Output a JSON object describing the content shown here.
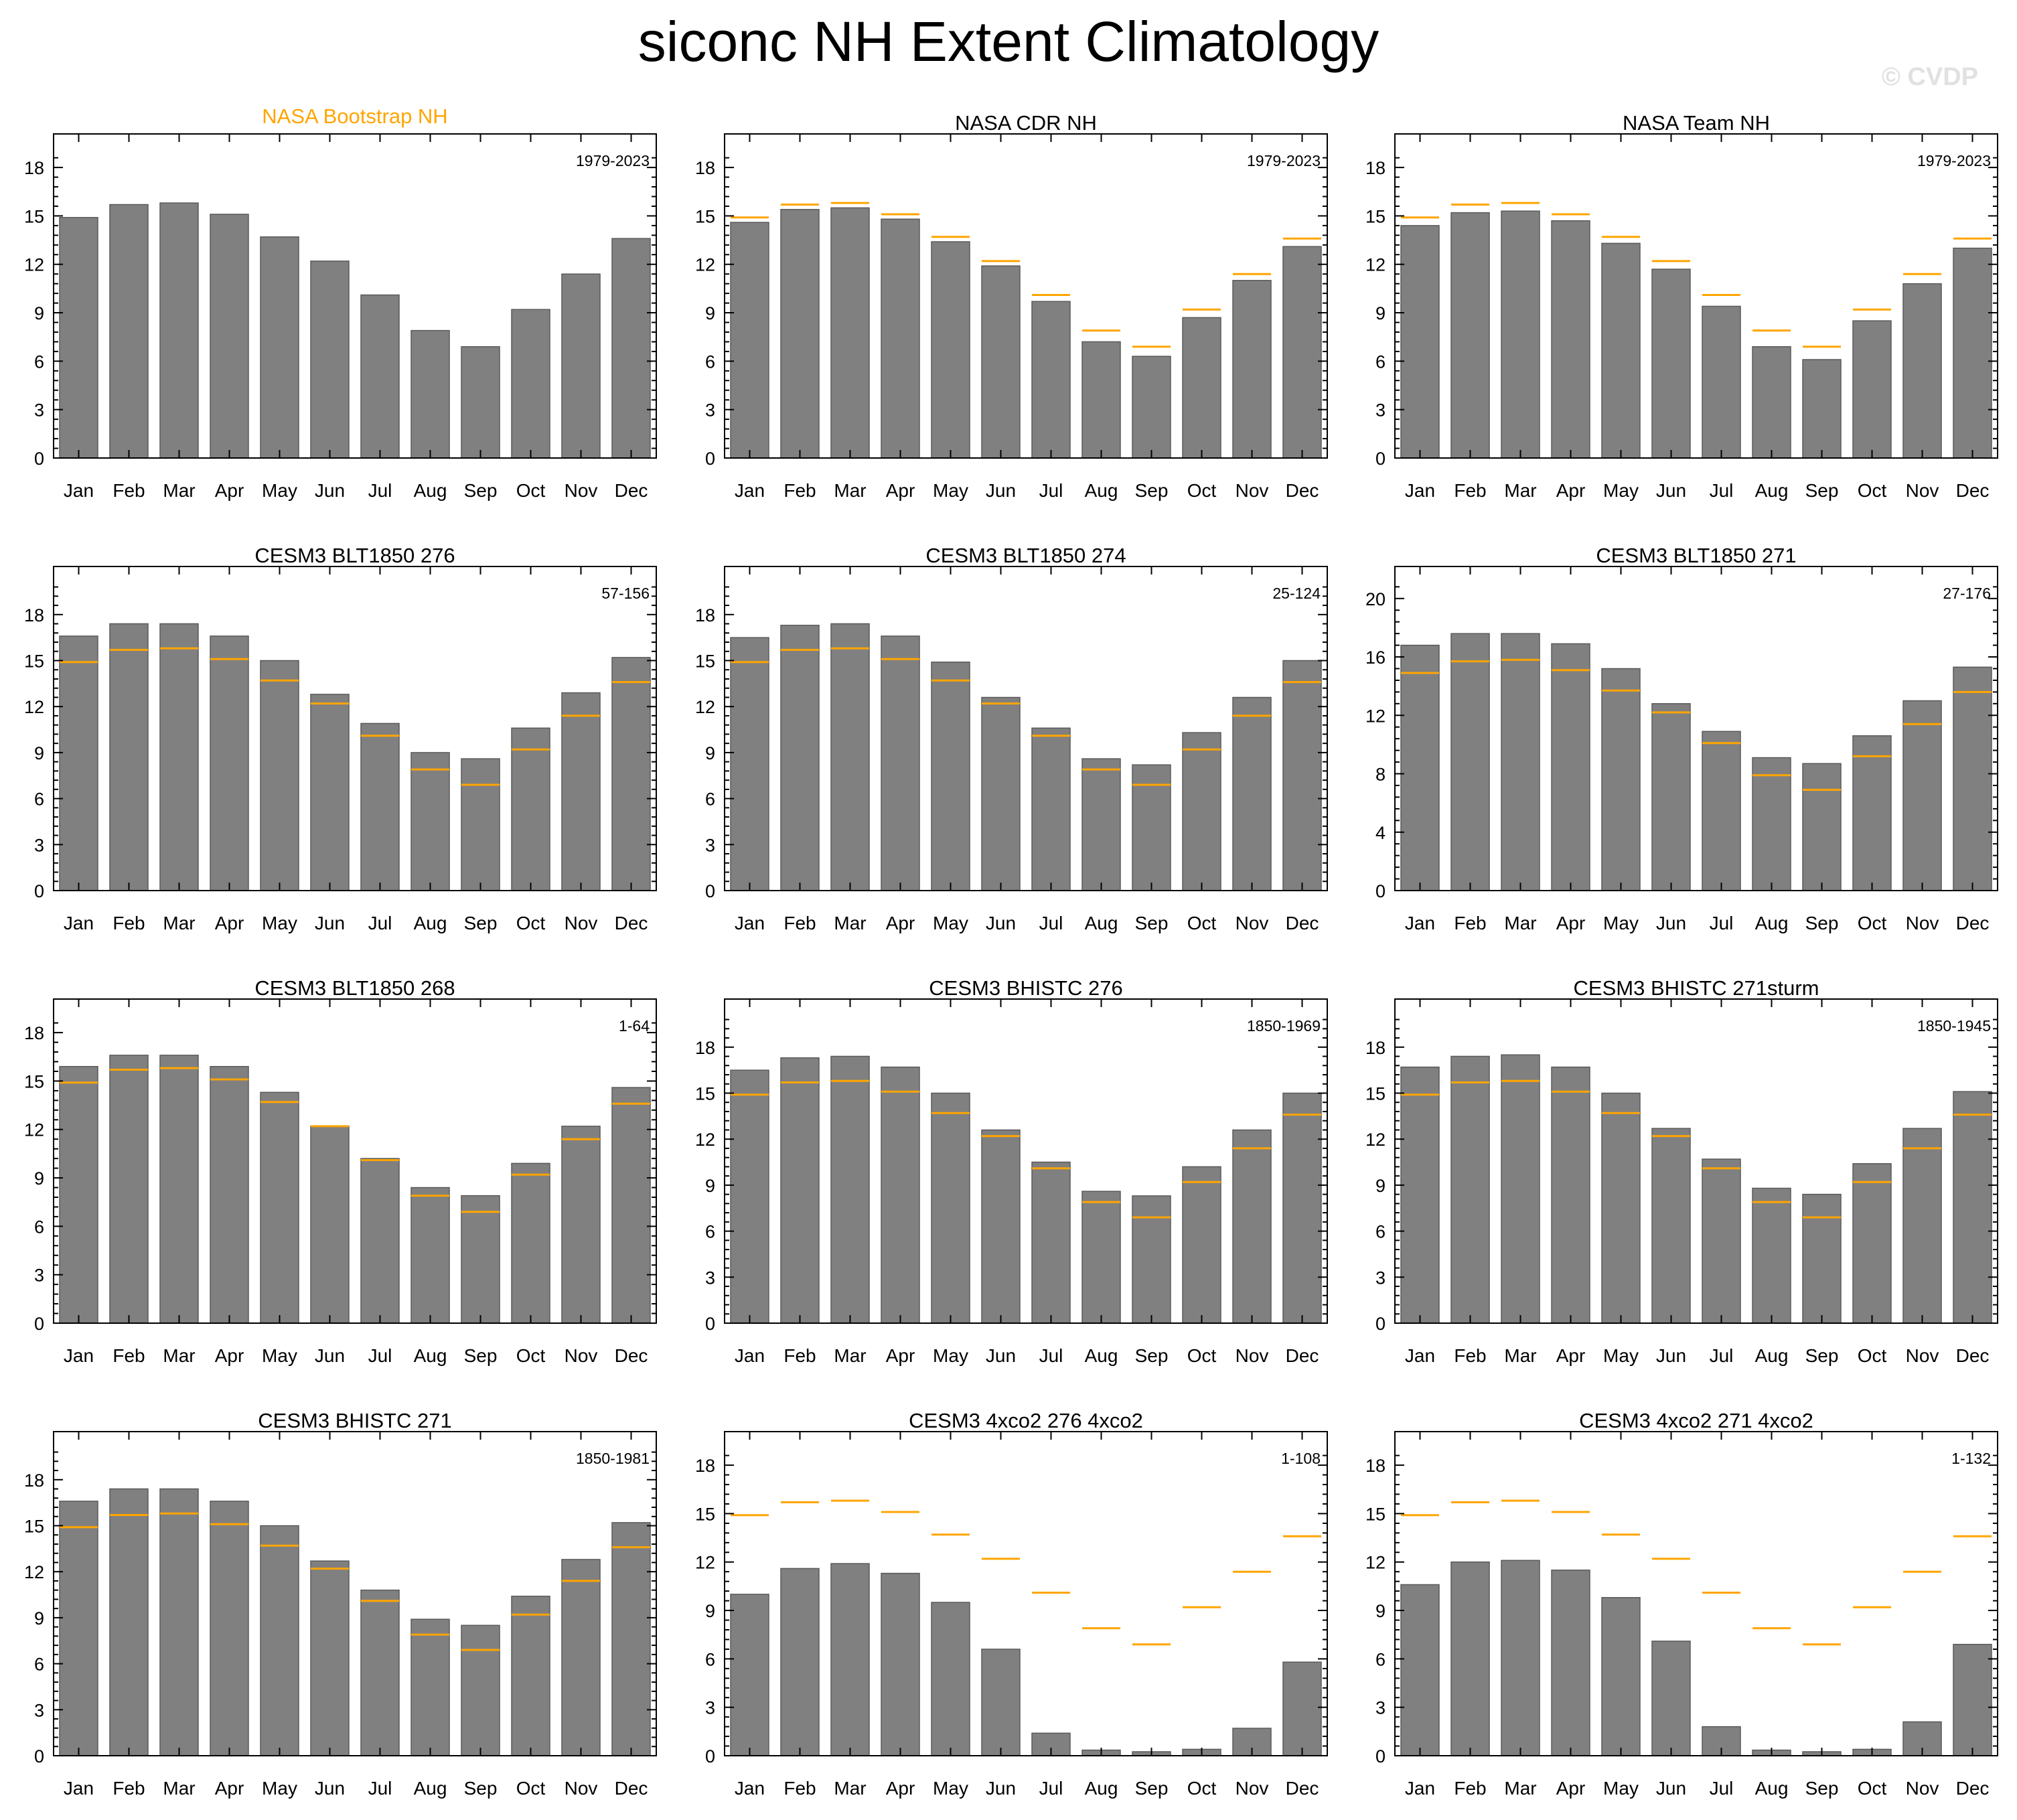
{
  "figure": {
    "title": "siconc NH Extent Climatology",
    "watermark": "© CVDP"
  },
  "colors": {
    "bar": "#808080",
    "reference_line": "#ffa500",
    "observation_title": "#ffa500",
    "axis": "#000000"
  },
  "months": [
    "Jan",
    "Feb",
    "Mar",
    "Apr",
    "May",
    "Jun",
    "Jul",
    "Aug",
    "Sep",
    "Oct",
    "Nov",
    "Dec"
  ],
  "reference": {
    "name": "NASA Bootstrap NH",
    "values": [
      14.9,
      15.7,
      15.8,
      15.1,
      13.7,
      12.2,
      10.1,
      7.9,
      6.9,
      9.2,
      11.4,
      13.6
    ]
  },
  "chart_data": [
    {
      "type": "bar",
      "title": "NASA Bootstrap NH",
      "period": "1979-2023",
      "title_is_reference": true,
      "show_reference": false,
      "ylim": [
        0,
        19
      ],
      "yticks": [
        0,
        3,
        6,
        9,
        12,
        15,
        18
      ],
      "categories": [
        "Jan",
        "Feb",
        "Mar",
        "Apr",
        "May",
        "Jun",
        "Jul",
        "Aug",
        "Sep",
        "Oct",
        "Nov",
        "Dec"
      ],
      "values": [
        14.9,
        15.7,
        15.8,
        15.1,
        13.7,
        12.2,
        10.1,
        7.9,
        6.9,
        9.2,
        11.4,
        13.6
      ]
    },
    {
      "type": "bar",
      "title": "NASA CDR NH",
      "period": "1979-2023",
      "show_reference": true,
      "ylim": [
        0,
        19
      ],
      "yticks": [
        0,
        3,
        6,
        9,
        12,
        15,
        18
      ],
      "categories": [
        "Jan",
        "Feb",
        "Mar",
        "Apr",
        "May",
        "Jun",
        "Jul",
        "Aug",
        "Sep",
        "Oct",
        "Nov",
        "Dec"
      ],
      "values": [
        14.6,
        15.4,
        15.5,
        14.8,
        13.4,
        11.9,
        9.7,
        7.2,
        6.3,
        8.7,
        11.0,
        13.1
      ]
    },
    {
      "type": "bar",
      "title": "NASA Team NH",
      "period": "1979-2023",
      "show_reference": true,
      "ylim": [
        0,
        19
      ],
      "yticks": [
        0,
        3,
        6,
        9,
        12,
        15,
        18
      ],
      "categories": [
        "Jan",
        "Feb",
        "Mar",
        "Apr",
        "May",
        "Jun",
        "Jul",
        "Aug",
        "Sep",
        "Oct",
        "Nov",
        "Dec"
      ],
      "values": [
        14.4,
        15.2,
        15.3,
        14.7,
        13.3,
        11.7,
        9.4,
        6.9,
        6.1,
        8.5,
        10.8,
        13.0
      ]
    },
    {
      "type": "bar",
      "title": "CESM3 BLT1850 276",
      "period": "57-156",
      "show_reference": true,
      "ylim": [
        0,
        20
      ],
      "yticks": [
        0,
        3,
        6,
        9,
        12,
        15,
        18
      ],
      "categories": [
        "Jan",
        "Feb",
        "Mar",
        "Apr",
        "May",
        "Jun",
        "Jul",
        "Aug",
        "Sep",
        "Oct",
        "Nov",
        "Dec"
      ],
      "values": [
        16.6,
        17.4,
        17.4,
        16.6,
        15.0,
        12.8,
        10.9,
        9.0,
        8.6,
        10.6,
        12.9,
        15.2
      ]
    },
    {
      "type": "bar",
      "title": "CESM3 BLT1850 274",
      "period": "25-124",
      "show_reference": true,
      "ylim": [
        0,
        20
      ],
      "yticks": [
        0,
        3,
        6,
        9,
        12,
        15,
        18
      ],
      "categories": [
        "Jan",
        "Feb",
        "Mar",
        "Apr",
        "May",
        "Jun",
        "Jul",
        "Aug",
        "Sep",
        "Oct",
        "Nov",
        "Dec"
      ],
      "values": [
        16.5,
        17.3,
        17.4,
        16.6,
        14.9,
        12.6,
        10.6,
        8.6,
        8.2,
        10.3,
        12.6,
        15.0
      ]
    },
    {
      "type": "bar",
      "title": "CESM3 BLT1850 271",
      "period": "27-176",
      "show_reference": true,
      "ylim": [
        0,
        21
      ],
      "yticks": [
        0,
        4,
        8,
        12,
        16,
        20
      ],
      "categories": [
        "Jan",
        "Feb",
        "Mar",
        "Apr",
        "May",
        "Jun",
        "Jul",
        "Aug",
        "Sep",
        "Oct",
        "Nov",
        "Dec"
      ],
      "values": [
        16.8,
        17.6,
        17.6,
        16.9,
        15.2,
        12.8,
        10.9,
        9.1,
        8.7,
        10.6,
        13.0,
        15.3
      ]
    },
    {
      "type": "bar",
      "title": "CESM3 BLT1850 268",
      "period": "1-64",
      "show_reference": true,
      "ylim": [
        0,
        19
      ],
      "yticks": [
        0,
        3,
        6,
        9,
        12,
        15,
        18
      ],
      "categories": [
        "Jan",
        "Feb",
        "Mar",
        "Apr",
        "May",
        "Jun",
        "Jul",
        "Aug",
        "Sep",
        "Oct",
        "Nov",
        "Dec"
      ],
      "values": [
        15.9,
        16.6,
        16.6,
        15.9,
        14.3,
        12.2,
        10.2,
        8.4,
        7.9,
        9.9,
        12.2,
        14.6
      ]
    },
    {
      "type": "bar",
      "title": "CESM3 BHISTC 276",
      "period": "1850-1969",
      "show_reference": true,
      "ylim": [
        0,
        20
      ],
      "yticks": [
        0,
        3,
        6,
        9,
        12,
        15,
        18
      ],
      "categories": [
        "Jan",
        "Feb",
        "Mar",
        "Apr",
        "May",
        "Jun",
        "Jul",
        "Aug",
        "Sep",
        "Oct",
        "Nov",
        "Dec"
      ],
      "values": [
        16.5,
        17.3,
        17.4,
        16.7,
        15.0,
        12.6,
        10.5,
        8.6,
        8.3,
        10.2,
        12.6,
        15.0
      ]
    },
    {
      "type": "bar",
      "title": "CESM3 BHISTC 271sturm",
      "period": "1850-1945",
      "show_reference": true,
      "ylim": [
        0,
        20
      ],
      "yticks": [
        0,
        3,
        6,
        9,
        12,
        15,
        18
      ],
      "categories": [
        "Jan",
        "Feb",
        "Mar",
        "Apr",
        "May",
        "Jun",
        "Jul",
        "Aug",
        "Sep",
        "Oct",
        "Nov",
        "Dec"
      ],
      "values": [
        16.7,
        17.4,
        17.5,
        16.7,
        15.0,
        12.7,
        10.7,
        8.8,
        8.4,
        10.4,
        12.7,
        15.1
      ]
    },
    {
      "type": "bar",
      "title": "CESM3 BHISTC 271",
      "period": "1850-1981",
      "show_reference": true,
      "ylim": [
        0,
        20
      ],
      "yticks": [
        0,
        3,
        6,
        9,
        12,
        15,
        18
      ],
      "categories": [
        "Jan",
        "Feb",
        "Mar",
        "Apr",
        "May",
        "Jun",
        "Jul",
        "Aug",
        "Sep",
        "Oct",
        "Nov",
        "Dec"
      ],
      "values": [
        16.6,
        17.4,
        17.4,
        16.6,
        15.0,
        12.7,
        10.8,
        8.9,
        8.5,
        10.4,
        12.8,
        15.2
      ]
    },
    {
      "type": "bar",
      "title": "CESM3 4xco2 276 4xco2",
      "period": "1-108",
      "show_reference": true,
      "ylim": [
        0,
        19
      ],
      "yticks": [
        0,
        3,
        6,
        9,
        12,
        15,
        18
      ],
      "categories": [
        "Jan",
        "Feb",
        "Mar",
        "Apr",
        "May",
        "Jun",
        "Jul",
        "Aug",
        "Sep",
        "Oct",
        "Nov",
        "Dec"
      ],
      "values": [
        10.0,
        11.6,
        11.9,
        11.3,
        9.5,
        6.6,
        1.4,
        0.35,
        0.25,
        0.4,
        1.7,
        5.8
      ]
    },
    {
      "type": "bar",
      "title": "CESM3 4xco2 271 4xco2",
      "period": "1-132",
      "show_reference": true,
      "ylim": [
        0,
        19
      ],
      "yticks": [
        0,
        3,
        6,
        9,
        12,
        15,
        18
      ],
      "categories": [
        "Jan",
        "Feb",
        "Mar",
        "Apr",
        "May",
        "Jun",
        "Jul",
        "Aug",
        "Sep",
        "Oct",
        "Nov",
        "Dec"
      ],
      "values": [
        10.6,
        12.0,
        12.1,
        11.5,
        9.8,
        7.1,
        1.8,
        0.35,
        0.25,
        0.4,
        2.1,
        6.9
      ]
    }
  ]
}
